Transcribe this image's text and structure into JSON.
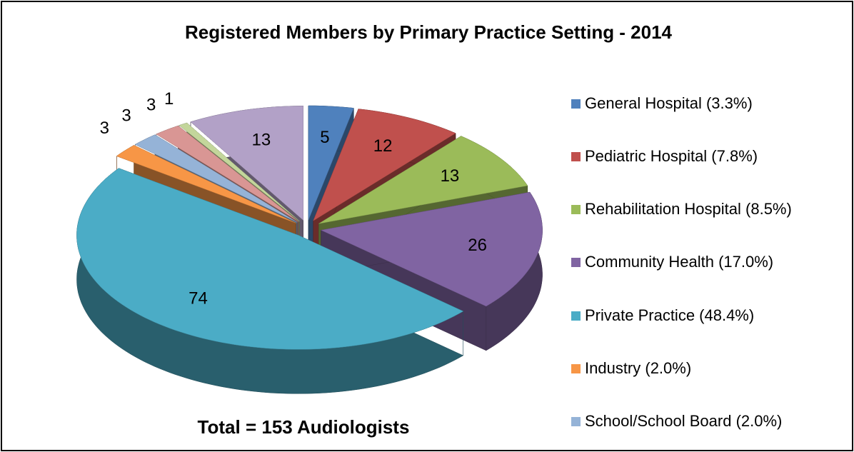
{
  "chart_data": {
    "type": "pie3d",
    "title": "Registered Members by Primary Practice Setting - 2014",
    "annotation": "Total = 153 Audiologists",
    "categories": [
      "General Hospital (3.3%)",
      "Pediatric Hospital (7.8%)",
      "Rehabilitation Hospital (8.5%)",
      "Community Health (17.0%)",
      "Private Practice (48.4%)",
      "Industry (2.0%)",
      "School/School Board (2.0%)",
      null,
      null,
      null
    ],
    "values": [
      5,
      12,
      13,
      26,
      74,
      3,
      3,
      3,
      1,
      13
    ],
    "colors": [
      "#4f81bd",
      "#c0504d",
      "#9bbb59",
      "#8064a2",
      "#4bacc6",
      "#f79646",
      "#95b3d7",
      "#d99694",
      "#c3d69b",
      "#b2a1c7"
    ],
    "legend": "right"
  }
}
